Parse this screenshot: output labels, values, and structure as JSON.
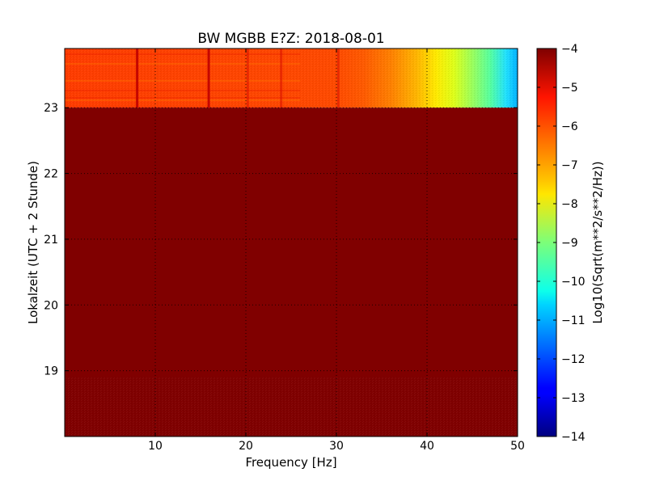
{
  "chart_data": {
    "type": "heatmap",
    "title": "BW MGBB E?Z: 2018-08-01",
    "xlabel": "Frequency [Hz]",
    "ylabel": "Lokalzeit (UTC + 2 Stunde)",
    "xlim": [
      0,
      50
    ],
    "ylim": [
      23.9,
      18.0
    ],
    "x_ticks": [
      10,
      20,
      30,
      40,
      50
    ],
    "y_ticks": [
      19,
      20,
      21,
      22,
      23
    ],
    "grid": true,
    "colorbar": {
      "label": "Log10(Sqrt(m**2/s**2/Hz))",
      "range": [
        -14,
        -4
      ],
      "ticks": [
        -4,
        -5,
        -6,
        -7,
        -8,
        -9,
        -10,
        -11,
        -12,
        -13,
        -14
      ],
      "colormap": "jet"
    },
    "spectral_profile": {
      "frequencies_hz": [
        0,
        10,
        20,
        25,
        30,
        33,
        36,
        38,
        40,
        42,
        44,
        46,
        48,
        50
      ],
      "log10_amplitude": [
        -6.3,
        -6.4,
        -6.4,
        -6.3,
        -6.2,
        -6.3,
        -6.5,
        -6.8,
        -7.2,
        -7.7,
        -8.2,
        -8.7,
        -9.3,
        -10.0
      ]
    },
    "narrowband_lines_hz": [
      8.0,
      15.9,
      20.2,
      23.9,
      30.2
    ],
    "data_end_hour": 23.0,
    "after_data_end_value": -4.0
  }
}
